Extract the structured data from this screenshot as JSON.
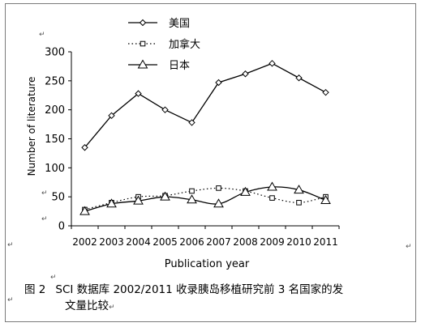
{
  "chart_data": {
    "type": "line",
    "title": "",
    "xlabel": "Publication year",
    "ylabel": "Number of literature",
    "categories": [
      "2002",
      "2003",
      "2004",
      "2005",
      "2006",
      "2007",
      "2008",
      "2009",
      "2010",
      "2011"
    ],
    "y_ticks": [
      "0",
      "50",
      "100",
      "150",
      "200",
      "250",
      "300"
    ],
    "ylim": [
      0,
      300
    ],
    "grid": false,
    "legend_position": "top-center",
    "series": [
      {
        "name": "美国",
        "marker": "diamond",
        "line": "solid",
        "values": [
          135,
          190,
          228,
          200,
          178,
          247,
          262,
          280,
          255,
          230
        ]
      },
      {
        "name": "加拿大",
        "marker": "square",
        "line": "dotted",
        "values": [
          28,
          40,
          50,
          52,
          60,
          65,
          60,
          48,
          40,
          50
        ]
      },
      {
        "name": "日本",
        "marker": "triangle",
        "line": "solid",
        "values": [
          25,
          38,
          43,
          50,
          45,
          38,
          58,
          67,
          62,
          44
        ]
      }
    ]
  },
  "caption": {
    "figure_number": "图 2",
    "line1": "SCI 数据库 2002/2011 收录胰岛移植研究前 3 名国家的发",
    "line2": "文量比较"
  },
  "paragraph_mark": "↵",
  "colors": {
    "line": "#000000",
    "frame": "#7a7a7a",
    "background": "#ffffff"
  }
}
